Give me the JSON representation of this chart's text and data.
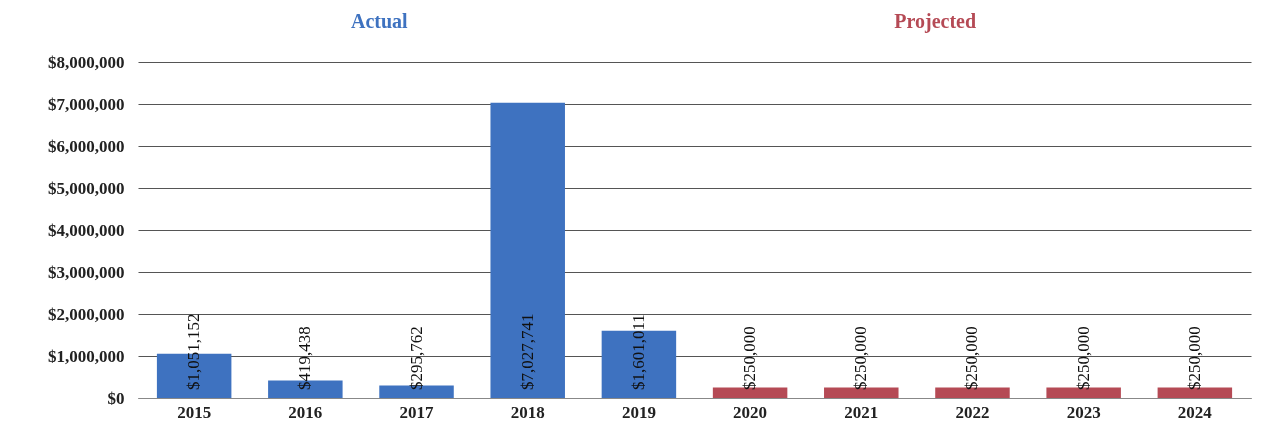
{
  "chart_data": {
    "type": "bar",
    "categories": [
      "2015",
      "2016",
      "2017",
      "2018",
      "2019",
      "2020",
      "2021",
      "2022",
      "2023",
      "2024"
    ],
    "series": [
      {
        "name": "Actual",
        "color": "#3e72c0",
        "values": [
          1051152,
          419438,
          295762,
          7027741,
          1601011,
          null,
          null,
          null,
          null,
          null
        ]
      },
      {
        "name": "Projected",
        "color": "#b54a55",
        "values": [
          null,
          null,
          null,
          null,
          null,
          250000,
          250000,
          250000,
          250000,
          250000
        ]
      }
    ],
    "ylim": [
      0,
      8000000
    ],
    "yticks": [
      {
        "value": 0,
        "label": "$0"
      },
      {
        "value": 1000000,
        "label": "$1,000,000"
      },
      {
        "value": 2000000,
        "label": "$2,000,000"
      },
      {
        "value": 3000000,
        "label": "$3,000,000"
      },
      {
        "value": 4000000,
        "label": "$4,000,000"
      },
      {
        "value": 5000000,
        "label": "$5,000,000"
      },
      {
        "value": 6000000,
        "label": "$6,000,000"
      },
      {
        "value": 7000000,
        "label": "$7,000,000"
      },
      {
        "value": 8000000,
        "label": "$8,000,000"
      }
    ],
    "value_labels": [
      "$1,051,152",
      "$419,438",
      "$295,762",
      "$7,027,741",
      "$1,601,011",
      "$250,000",
      "$250,000",
      "$250,000",
      "$250,000",
      "$250,000"
    ],
    "grid": "y"
  }
}
